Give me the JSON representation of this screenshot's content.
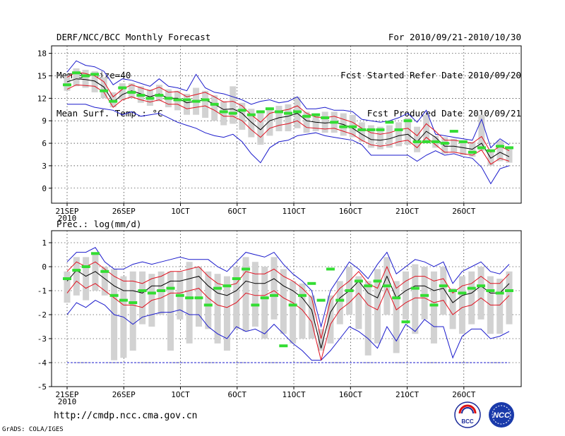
{
  "header": {
    "left": [
      "DERF/NCC/BCC Monthly Forecast",
      "Member Size=40",
      "Mean Surf. Temp.: °C"
    ],
    "right": [
      "For 2010/09/21-2010/10/30",
      "Fcst Started Refer Date 2010/09/20",
      "Fcst Produced Date 2010/09/21"
    ]
  },
  "footer": {
    "url": "http://cmdp.ncc.cma.gov.cn",
    "credit": "GrADS: COLA/IGES",
    "logo_bcc_text": "BCC",
    "logo_ncc_text": "NCC"
  },
  "colors": {
    "box": "#d2d2d2",
    "median": "#33dd33",
    "mean": "#000000",
    "spread": "#e0101e",
    "extreme": "#1a1acc",
    "grid": "#000000"
  },
  "chart_data": [
    {
      "type": "box-ensemble",
      "title": "Mean Surf. Temp.: °C",
      "xlabel": "",
      "ylabel": "",
      "ylim": [
        -2,
        19
      ],
      "yticks": [
        0,
        3,
        6,
        9,
        12,
        15,
        18
      ],
      "ytick_labels": [
        "0",
        "3",
        "6",
        "9",
        "12",
        "15",
        "18"
      ],
      "xtick_days": [
        0,
        5,
        10,
        15,
        20,
        25,
        30,
        35
      ],
      "xtick_labels": [
        "21SEP",
        "26SEP",
        "1OCT",
        "6OCT",
        "11OCT",
        "16OCT",
        "21OCT",
        "26OCT"
      ],
      "xsub_label": "2010",
      "days": 40,
      "series": {
        "mean": [
          14.2,
          14.6,
          14.5,
          14.3,
          13.5,
          11.5,
          12.5,
          13.0,
          12.6,
          12.2,
          12.6,
          12.0,
          12.0,
          11.4,
          11.6,
          11.8,
          11.2,
          10.5,
          10.6,
          10.0,
          8.8,
          7.8,
          9.0,
          9.4,
          9.6,
          10.0,
          9.0,
          8.8,
          8.7,
          8.8,
          8.5,
          8.0,
          7.2,
          6.5,
          6.4,
          6.6,
          7.0,
          7.2,
          6.2,
          7.6,
          6.8,
          5.6,
          5.6,
          5.4,
          5.2,
          6.0,
          4.0,
          4.8,
          4.2
        ],
        "upper": [
          14.8,
          15.5,
          15.3,
          15.0,
          14.2,
          12.2,
          13.2,
          13.8,
          13.4,
          13.0,
          13.5,
          12.8,
          12.9,
          12.2,
          12.5,
          12.8,
          12.2,
          11.5,
          11.6,
          11.0,
          9.8,
          8.8,
          10.0,
          10.3,
          10.5,
          11.0,
          10.0,
          9.5,
          9.4,
          9.6,
          9.2,
          8.8,
          8.0,
          7.4,
          7.2,
          7.4,
          7.8,
          8.0,
          7.0,
          8.6,
          7.6,
          6.4,
          6.4,
          6.2,
          6.0,
          6.9,
          4.8,
          5.6,
          5.0
        ],
        "lower": [
          13.2,
          13.8,
          13.7,
          13.6,
          12.8,
          10.8,
          11.8,
          12.2,
          11.8,
          11.5,
          11.8,
          11.2,
          11.2,
          10.6,
          10.8,
          11.0,
          10.4,
          9.6,
          9.6,
          9.0,
          7.8,
          6.8,
          8.0,
          8.4,
          8.6,
          9.0,
          8.1,
          8.0,
          7.9,
          8.0,
          7.6,
          7.2,
          6.4,
          5.8,
          5.6,
          5.8,
          6.2,
          6.4,
          5.4,
          6.8,
          5.8,
          4.8,
          4.8,
          4.6,
          4.4,
          5.1,
          3.2,
          4.0,
          3.6
        ],
        "max": [
          15.5,
          17.0,
          16.4,
          16.2,
          15.6,
          13.8,
          14.6,
          14.4,
          14.0,
          13.6,
          14.6,
          13.6,
          13.4,
          13.0,
          15.2,
          13.4,
          12.8,
          12.6,
          12.2,
          11.8,
          11.2,
          11.6,
          11.8,
          11.4,
          11.6,
          12.2,
          10.6,
          10.6,
          10.8,
          10.4,
          10.4,
          10.2,
          9.2,
          9.0,
          8.8,
          9.0,
          9.4,
          10.0,
          8.8,
          10.4,
          7.2,
          7.0,
          6.8,
          6.6,
          6.4,
          9.2,
          5.4,
          6.6,
          5.8
        ],
        "min": [
          11.2,
          11.2,
          11.2,
          10.8,
          10.6,
          10.4,
          9.8,
          10.2,
          9.6,
          9.8,
          10.0,
          9.4,
          8.8,
          8.4,
          8.0,
          7.4,
          7.0,
          6.8,
          7.2,
          6.2,
          4.6,
          3.4,
          5.4,
          6.2,
          6.4,
          7.0,
          7.2,
          7.4,
          7.0,
          6.8,
          6.6,
          6.4,
          5.8,
          4.4,
          4.4,
          4.4,
          4.4,
          4.4,
          3.6,
          4.4,
          5.0,
          4.4,
          4.6,
          4.2,
          4.0,
          2.8,
          0.6,
          2.6,
          3.0
        ],
        "box_top": [
          15.0,
          16.0,
          15.8,
          15.6,
          14.8,
          12.8,
          14.0,
          14.0,
          13.6,
          13.2,
          13.8,
          13.2,
          13.0,
          12.6,
          13.4,
          13.0,
          12.4,
          11.6,
          13.6,
          11.4,
          10.6,
          10.4,
          10.8,
          11.0,
          11.2,
          12.2,
          10.2,
          10.0,
          10.2,
          10.2,
          10.0,
          9.8,
          8.8,
          8.4,
          8.2,
          8.4,
          8.8,
          9.4,
          8.2,
          9.8,
          7.0,
          6.8,
          6.6,
          6.4,
          6.2,
          9.8,
          5.2,
          6.4,
          5.6
        ],
        "box_bottom": [
          13.0,
          13.6,
          13.4,
          12.8,
          12.0,
          10.8,
          11.8,
          12.0,
          11.4,
          11.0,
          11.6,
          10.8,
          10.4,
          9.8,
          9.8,
          9.4,
          9.0,
          8.4,
          8.6,
          7.8,
          6.8,
          5.8,
          7.0,
          7.6,
          7.6,
          8.0,
          7.4,
          7.6,
          7.4,
          7.4,
          7.0,
          6.8,
          6.2,
          5.4,
          5.2,
          5.4,
          5.6,
          5.8,
          4.8,
          6.2,
          5.4,
          4.6,
          4.8,
          4.4,
          4.2,
          5.0,
          3.0,
          3.6,
          3.4
        ],
        "median": [
          13.8,
          15.4,
          15.0,
          15.2,
          13.0,
          11.6,
          13.4,
          12.8,
          12.4,
          12.0,
          12.4,
          12.0,
          11.8,
          11.8,
          11.6,
          11.8,
          11.2,
          10.2,
          10.0,
          10.4,
          9.8,
          10.2,
          10.6,
          10.2,
          10.0,
          10.2,
          9.6,
          9.8,
          9.4,
          8.8,
          8.2,
          8.2,
          7.8,
          7.8,
          7.8,
          8.8,
          7.8,
          9.0,
          6.2,
          6.2,
          6.2,
          6.0,
          7.6,
          6.2,
          4.8,
          5.4,
          5.0,
          5.6,
          5.4
        ]
      }
    },
    {
      "type": "box-ensemble",
      "title": "Prec.: log(mm/d)",
      "xlabel": "",
      "ylabel": "",
      "ylim": [
        -5,
        1.5
      ],
      "yticks": [
        -5,
        -4,
        -3,
        -2,
        -1,
        0,
        1
      ],
      "ytick_labels": [
        "-5",
        "-4",
        "-3",
        "-2",
        "-1",
        "0",
        "1"
      ],
      "xtick_days": [
        0,
        5,
        10,
        15,
        20,
        25,
        30,
        35
      ],
      "xtick_labels": [
        "21SEP",
        "26SEP",
        "1OCT",
        "6OCT",
        "11OCT",
        "16OCT",
        "21OCT",
        "26OCT"
      ],
      "xsub_label": "2010",
      "days": 40,
      "baseline": -4,
      "series": {
        "mean": [
          -0.6,
          -0.15,
          -0.4,
          -0.2,
          -0.5,
          -0.8,
          -1.0,
          -1.0,
          -1.1,
          -0.8,
          -0.8,
          -0.6,
          -0.6,
          -0.5,
          -0.4,
          -0.8,
          -1.1,
          -1.2,
          -1.0,
          -0.6,
          -0.7,
          -0.7,
          -0.5,
          -0.8,
          -1.0,
          -1.3,
          -1.8,
          -3.4,
          -1.9,
          -1.3,
          -1.0,
          -0.6,
          -1.1,
          -1.3,
          -0.4,
          -1.3,
          -1.0,
          -0.8,
          -0.8,
          -1.0,
          -0.9,
          -1.5,
          -1.2,
          -1.1,
          -0.8,
          -1.1,
          -1.1,
          -0.7
        ],
        "upper": [
          -0.2,
          0.2,
          0.0,
          0.2,
          -0.1,
          -0.4,
          -0.6,
          -0.6,
          -0.7,
          -0.5,
          -0.4,
          -0.2,
          -0.2,
          -0.1,
          0.0,
          -0.4,
          -0.7,
          -0.8,
          -0.7,
          -0.2,
          -0.3,
          -0.3,
          -0.1,
          -0.4,
          -0.6,
          -0.9,
          -1.3,
          -3.0,
          -1.4,
          -0.9,
          -0.6,
          -0.2,
          -0.7,
          -0.9,
          0.0,
          -0.9,
          -0.6,
          -0.4,
          -0.4,
          -0.6,
          -0.5,
          -1.1,
          -0.8,
          -0.7,
          -0.4,
          -0.7,
          -0.7,
          -0.3
        ],
        "lower": [
          -1.1,
          -0.6,
          -0.9,
          -0.7,
          -1.0,
          -1.3,
          -1.6,
          -1.6,
          -1.7,
          -1.4,
          -1.3,
          -1.1,
          -1.1,
          -1.0,
          -0.9,
          -1.3,
          -1.6,
          -1.7,
          -1.5,
          -1.1,
          -1.2,
          -1.2,
          -1.0,
          -1.3,
          -1.5,
          -1.8,
          -2.3,
          -3.9,
          -2.4,
          -1.8,
          -1.5,
          -1.1,
          -1.6,
          -1.8,
          -0.9,
          -1.8,
          -1.5,
          -1.3,
          -1.3,
          -1.5,
          -1.4,
          -2.0,
          -1.7,
          -1.6,
          -1.3,
          -1.6,
          -1.6,
          -1.2
        ],
        "max": [
          0.2,
          0.6,
          0.6,
          0.8,
          0.2,
          -0.1,
          -0.1,
          0.1,
          0.2,
          0.1,
          0.2,
          0.3,
          0.4,
          0.3,
          0.3,
          0.3,
          0.0,
          -0.2,
          0.2,
          0.6,
          0.5,
          0.4,
          0.6,
          0.1,
          -0.3,
          -0.6,
          -1.0,
          -2.5,
          -1.0,
          -0.4,
          0.2,
          -0.1,
          -0.5,
          0.1,
          0.6,
          -0.3,
          0.0,
          0.3,
          0.2,
          0.0,
          0.2,
          -0.7,
          -0.2,
          0.0,
          0.2,
          -0.2,
          -0.3,
          0.1
        ],
        "min": [
          -2.0,
          -1.5,
          -1.7,
          -1.4,
          -1.6,
          -2.0,
          -2.1,
          -2.4,
          -2.1,
          -2.0,
          -1.9,
          -1.9,
          -1.8,
          -2.0,
          -2.0,
          -2.5,
          -2.8,
          -3.0,
          -2.5,
          -2.7,
          -2.6,
          -2.8,
          -2.4,
          -2.8,
          -3.2,
          -3.5,
          -3.9,
          -3.9,
          -3.5,
          -3.0,
          -2.5,
          -2.7,
          -3.0,
          -3.4,
          -2.5,
          -3.1,
          -2.4,
          -2.7,
          -2.2,
          -2.5,
          -2.5,
          -3.8,
          -2.9,
          -2.6,
          -2.6,
          -3.0,
          -2.9,
          -2.7
        ],
        "box_top": [
          -0.2,
          0.4,
          0.4,
          0.6,
          0.0,
          -0.1,
          -0.4,
          -0.2,
          -0.2,
          -0.3,
          -0.2,
          -0.2,
          -0.2,
          0.2,
          0.0,
          -0.2,
          -0.3,
          -0.4,
          0.0,
          0.4,
          0.2,
          0.0,
          0.4,
          -0.1,
          -0.6,
          -0.7,
          -1.2,
          -2.6,
          -1.2,
          -0.6,
          0.0,
          -0.4,
          -0.6,
          -0.1,
          0.4,
          -0.6,
          -0.2,
          0.1,
          0.0,
          -0.2,
          0.0,
          -0.9,
          -0.4,
          -0.2,
          0.0,
          -0.4,
          -0.5,
          -0.2
        ],
        "box_bottom": [
          -1.5,
          -1.2,
          -1.4,
          -1.0,
          -1.2,
          -3.9,
          -3.8,
          -3.5,
          -2.4,
          -2.5,
          -2.0,
          -3.5,
          -2.2,
          -3.2,
          -2.5,
          -2.6,
          -3.2,
          -3.5,
          -2.6,
          -2.7,
          -2.5,
          -3.0,
          -2.2,
          -2.8,
          -3.2,
          -3.0,
          -3.0,
          -3.5,
          -3.2,
          -2.4,
          -2.0,
          -2.6,
          -3.7,
          -3.2,
          -2.0,
          -3.6,
          -2.2,
          -2.8,
          -2.2,
          -3.2,
          -2.0,
          -2.6,
          -2.8,
          -2.4,
          -2.2,
          -2.8,
          -2.8,
          -2.4
        ],
        "median": [
          -0.5,
          -0.15,
          0.0,
          0.55,
          -0.2,
          -1.2,
          -1.4,
          -1.5,
          -1.0,
          -1.1,
          -1.0,
          -0.9,
          -1.2,
          -1.3,
          -1.3,
          -1.6,
          -0.9,
          -0.8,
          -0.5,
          -0.1,
          -1.6,
          -1.3,
          -1.2,
          -3.3,
          -1.6,
          -1.2,
          -0.7,
          -1.4,
          -0.1,
          -1.4,
          -1.0,
          -0.6,
          -0.8,
          -0.6,
          -0.8,
          -1.3,
          -2.3,
          -0.9,
          -1.2,
          -1.6,
          -0.8,
          -1.0,
          -1.1,
          -0.9,
          -0.8,
          -1.0,
          -1.1,
          -1.0
        ]
      }
    }
  ]
}
